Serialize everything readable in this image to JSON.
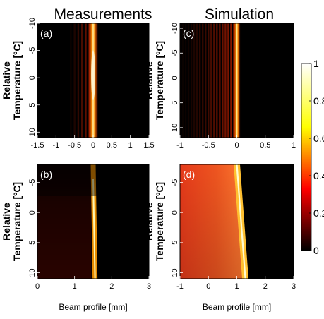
{
  "column_titles": [
    "Measurements",
    "Simulation"
  ],
  "colorbar": {
    "colormap": "hot",
    "range": [
      0,
      1
    ],
    "ticks": [
      "1",
      "0.8",
      "0.6",
      "0.4",
      "0.2",
      "0"
    ]
  },
  "chart_data": [
    {
      "panel": "(a)",
      "type": "heatmap",
      "title": "Measurements",
      "xlabel": "",
      "ylabel_lines": [
        "Relative",
        "Temperature [ºC]"
      ],
      "xlim": [
        -1.5,
        1.5
      ],
      "ylim": [
        -10,
        11
      ],
      "xticks": [
        "-1.5",
        "-1",
        "-0.5",
        "0",
        "0.5",
        "1",
        "1.5"
      ],
      "yticks": [
        "-10",
        "-5",
        "0",
        "5",
        "10"
      ],
      "ytick_values": [
        -10,
        -5,
        0,
        5,
        10
      ],
      "xtick_values": [
        -1.5,
        -1,
        -0.5,
        0,
        0.5,
        1,
        1.5
      ],
      "main_beam_x": 0.0,
      "peak_intensity": 1.0,
      "fringe_spacing": 0.1,
      "fringe_extent": [
        -0.6,
        0
      ]
    },
    {
      "panel": "(c)",
      "type": "heatmap",
      "title": "Simulation",
      "xlabel": "",
      "ylabel_lines": [
        "Relative",
        "Temperature [ºC]"
      ],
      "xlim": [
        -1,
        1
      ],
      "ylim": [
        -11,
        12
      ],
      "xticks": [
        "-1",
        "-0.5",
        "0",
        "0.5",
        "1"
      ],
      "yticks": [
        "-10",
        "-5",
        "0",
        "5",
        "10"
      ],
      "ytick_values": [
        -10,
        -5,
        0,
        5,
        10
      ],
      "xtick_values": [
        -1,
        -0.5,
        0,
        0.5,
        1
      ],
      "main_beam_x": 0.0,
      "peak_intensity": 1.0,
      "fringe_spacing": 0.05,
      "fringe_extent": [
        -1,
        0
      ]
    },
    {
      "panel": "(b)",
      "type": "heatmap",
      "xlabel": "Beam profile [mm]",
      "ylabel_lines": [
        "Relative",
        "Temperature [ºC]"
      ],
      "xlim": [
        0,
        3
      ],
      "ylim": [
        -8,
        11
      ],
      "xticks": [
        "0",
        "1",
        "2",
        "3"
      ],
      "yticks": [
        "-5",
        "0",
        "5",
        "10"
      ],
      "ytick_values": [
        -5,
        0,
        5,
        10
      ],
      "xtick_values": [
        0,
        1,
        2,
        3
      ],
      "beam_x_at_top": 1.5,
      "beam_x_at_bottom": 1.55,
      "peak_intensity": 1.0
    },
    {
      "panel": "(d)",
      "type": "heatmap",
      "xlabel": "Beam profile [mm]",
      "ylabel_lines": [
        "Relative",
        "Temperature [ºC]"
      ],
      "xlim": [
        -1,
        3
      ],
      "ylim": [
        -8,
        11
      ],
      "xticks": [
        "-1",
        "0",
        "1",
        "2",
        "3"
      ],
      "yticks": [
        "-5",
        "0",
        "5",
        "10"
      ],
      "ytick_values": [
        -5,
        0,
        5,
        10
      ],
      "xtick_values": [
        -1,
        0,
        1,
        2,
        3
      ],
      "beam_x_at_top": 1.0,
      "beam_x_at_bottom": 1.3,
      "peak_intensity": 1.0,
      "background_intensity": 0.4
    }
  ]
}
